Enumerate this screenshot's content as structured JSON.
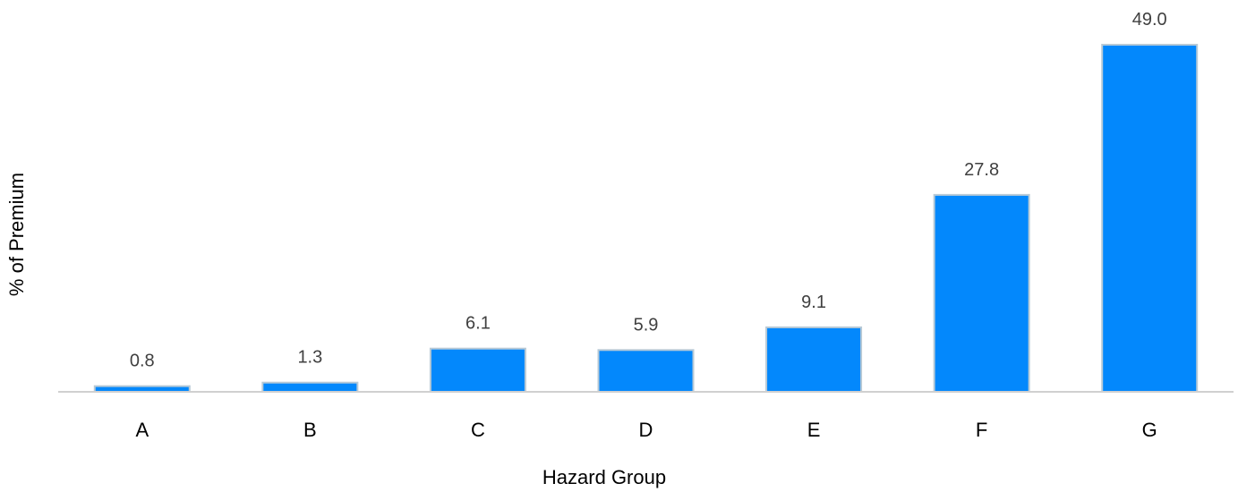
{
  "chart_data": {
    "type": "bar",
    "categories": [
      "A",
      "B",
      "C",
      "D",
      "E",
      "F",
      "G"
    ],
    "values": [
      0.8,
      1.3,
      6.1,
      5.9,
      9.1,
      27.8,
      49.0
    ],
    "value_labels": [
      "0.8",
      "1.3",
      "6.1",
      "5.9",
      "9.1",
      "27.8",
      "49.0"
    ],
    "title": "",
    "xlabel": "Hazard Group",
    "ylabel": "% of Premium",
    "ylim": [
      0,
      49.0
    ],
    "grid": false,
    "legend": "none",
    "colors": {
      "bar_fill": "#0388fc",
      "bar_stroke": "#b7c9d6",
      "baseline": "#d0d0d0"
    }
  }
}
